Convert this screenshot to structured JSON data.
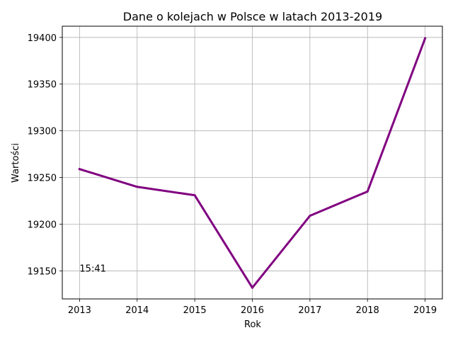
{
  "chart_data": {
    "type": "line",
    "title": "Dane o kolejach w Polsce w latach 2013-2019",
    "xlabel": "Rok",
    "ylabel": "Wartości",
    "x": [
      "2013",
      "2014",
      "2015",
      "2016",
      "2017",
      "2018",
      "2019"
    ],
    "series": [
      {
        "values": [
          19259,
          19240,
          19231,
          19132,
          19209,
          19235,
          19399
        ],
        "color": "#800080"
      }
    ],
    "ylim": [
      19120,
      19412
    ],
    "yticks": [
      19150,
      19200,
      19250,
      19300,
      19350,
      19400
    ],
    "grid": true,
    "annotation": {
      "text": "15:41",
      "x": "2013",
      "y": 19150
    }
  }
}
